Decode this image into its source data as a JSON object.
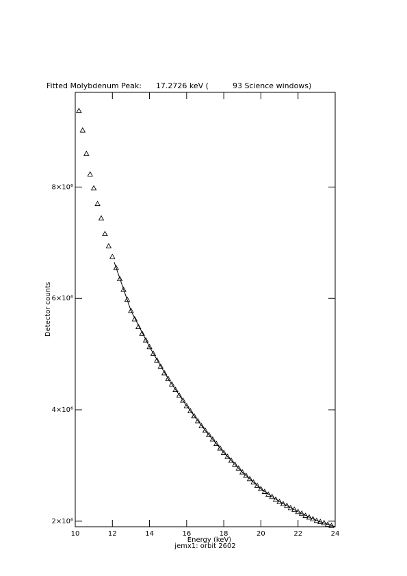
{
  "chart_data": {
    "type": "scatter",
    "title": "Fitted Molybdenum Peak:      17.2726 keV (          93 Science windows)",
    "xlabel": "Energy (keV)",
    "subtitle": "jemx1: orbit 2602",
    "ylabel": "Detector counts",
    "xlim": [
      10,
      24
    ],
    "ylim": [
      1900000,
      9700000
    ],
    "xticks": [
      10,
      12,
      14,
      16,
      18,
      20,
      22,
      24
    ],
    "yticks": [
      {
        "value": 2000000,
        "label": "2×10⁶"
      },
      {
        "value": 4000000,
        "label": "4×10⁶"
      },
      {
        "value": 6000000,
        "label": "6×10⁶"
      },
      {
        "value": 8000000,
        "label": "8×10⁶"
      }
    ],
    "series": [
      {
        "marker": "triangle",
        "color": "#000000",
        "x": [
          10.2,
          10.4,
          10.6,
          10.8,
          11.0,
          11.2,
          11.4,
          11.6,
          11.8,
          12.0,
          12.2,
          12.4,
          12.6,
          12.8,
          13.0,
          13.2,
          13.4,
          13.6,
          13.8,
          14.0,
          14.2,
          14.4,
          14.6,
          14.8,
          15.0,
          15.2,
          15.4,
          15.6,
          15.8,
          16.0,
          16.2,
          16.4,
          16.6,
          16.8,
          17.0,
          17.2,
          17.4,
          17.6,
          17.8,
          18.0,
          18.2,
          18.4,
          18.6,
          18.8,
          19.0,
          19.2,
          19.4,
          19.6,
          19.8,
          20.0,
          20.2,
          20.4,
          20.6,
          20.8,
          21.0,
          21.2,
          21.4,
          21.6,
          21.8,
          22.0,
          22.2,
          22.4,
          22.6,
          22.8,
          23.0,
          23.2,
          23.4,
          23.6,
          23.8
        ],
        "values": [
          9370000,
          9020000,
          8600000,
          8230000,
          7980000,
          7700000,
          7440000,
          7160000,
          6940000,
          6750000,
          6550000,
          6350000,
          6160000,
          5980000,
          5780000,
          5630000,
          5490000,
          5370000,
          5250000,
          5130000,
          5010000,
          4890000,
          4780000,
          4660000,
          4560000,
          4460000,
          4360000,
          4260000,
          4170000,
          4070000,
          3980000,
          3890000,
          3800000,
          3710000,
          3630000,
          3550000,
          3470000,
          3390000,
          3310000,
          3230000,
          3160000,
          3090000,
          3020000,
          2950000,
          2880000,
          2820000,
          2760000,
          2700000,
          2640000,
          2580000,
          2530000,
          2480000,
          2440000,
          2390000,
          2350000,
          2310000,
          2280000,
          2240000,
          2210000,
          2170000,
          2140000,
          2100000,
          2070000,
          2040000,
          2010000,
          1990000,
          1970000,
          1940000,
          1920000
        ]
      },
      {
        "line": true,
        "color": "#000000",
        "x": [
          12.1,
          13,
          14,
          15,
          16,
          17,
          18,
          19,
          20,
          21,
          22,
          23,
          24
        ],
        "values": [
          6650000,
          5780000,
          5130000,
          4560000,
          4070000,
          3630000,
          3230000,
          2880000,
          2580000,
          2350000,
          2170000,
          2010000,
          1900000
        ]
      }
    ]
  }
}
